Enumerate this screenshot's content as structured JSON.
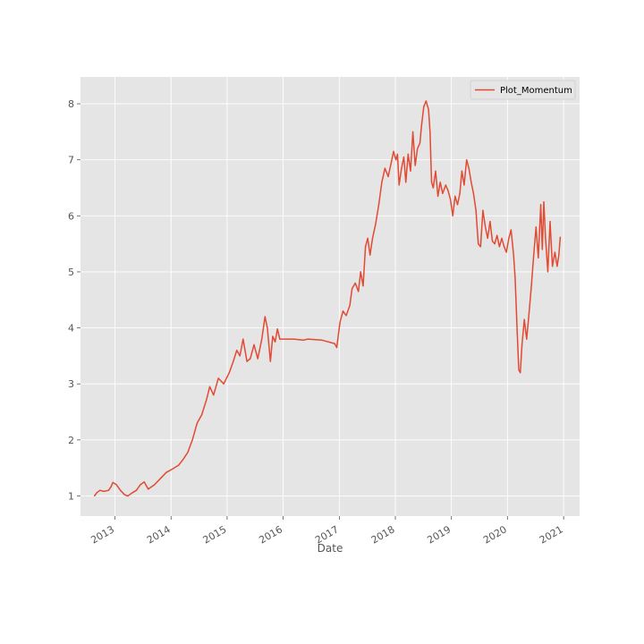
{
  "chart_data": {
    "type": "line",
    "title": "",
    "xlabel": "Date",
    "ylabel": "",
    "x_ticks": [
      "2013",
      "2014",
      "2015",
      "2016",
      "2017",
      "2018",
      "2019",
      "2020",
      "2021"
    ],
    "y_ticks": [
      1,
      2,
      3,
      4,
      5,
      6,
      7,
      8
    ],
    "xlim": [
      "2012-05-21",
      "2021-04-15"
    ],
    "ylim": [
      0.64,
      8.48
    ],
    "grid": true,
    "legend_position": "upper right",
    "series": [
      {
        "name": "Plot_Momentum",
        "color": "#E24A33",
        "points": [
          [
            "2012-08-20",
            1.0
          ],
          [
            "2012-09-05",
            1.06
          ],
          [
            "2012-09-25",
            1.1
          ],
          [
            "2012-10-20",
            1.08
          ],
          [
            "2012-11-20",
            1.1
          ],
          [
            "2012-12-05",
            1.16
          ],
          [
            "2012-12-18",
            1.24
          ],
          [
            "2013-01-10",
            1.2
          ],
          [
            "2013-02-05",
            1.1
          ],
          [
            "2013-03-05",
            1.02
          ],
          [
            "2013-03-25",
            1.0
          ],
          [
            "2013-04-20",
            1.05
          ],
          [
            "2013-05-20",
            1.1
          ],
          [
            "2013-06-15",
            1.2
          ],
          [
            "2013-07-10",
            1.25
          ],
          [
            "2013-08-05",
            1.12
          ],
          [
            "2013-09-15",
            1.2
          ],
          [
            "2013-10-20",
            1.3
          ],
          [
            "2013-12-01",
            1.42
          ],
          [
            "2014-01-10",
            1.48
          ],
          [
            "2014-02-20",
            1.55
          ],
          [
            "2014-03-20",
            1.65
          ],
          [
            "2014-04-20",
            1.78
          ],
          [
            "2014-05-20",
            2.0
          ],
          [
            "2014-06-20",
            2.3
          ],
          [
            "2014-07-20",
            2.45
          ],
          [
            "2014-08-20",
            2.72
          ],
          [
            "2014-09-10",
            2.95
          ],
          [
            "2014-10-05",
            2.8
          ],
          [
            "2014-11-05",
            3.1
          ],
          [
            "2014-12-10",
            3.0
          ],
          [
            "2015-01-15",
            3.2
          ],
          [
            "2015-02-10",
            3.4
          ],
          [
            "2015-03-05",
            3.6
          ],
          [
            "2015-03-25",
            3.5
          ],
          [
            "2015-04-15",
            3.8
          ],
          [
            "2015-05-10",
            3.4
          ],
          [
            "2015-06-01",
            3.45
          ],
          [
            "2015-06-25",
            3.7
          ],
          [
            "2015-07-20",
            3.45
          ],
          [
            "2015-08-15",
            3.8
          ],
          [
            "2015-09-05",
            4.2
          ],
          [
            "2015-09-20",
            4.0
          ],
          [
            "2015-10-10",
            3.4
          ],
          [
            "2015-10-25",
            3.85
          ],
          [
            "2015-11-10",
            3.75
          ],
          [
            "2015-11-25",
            3.98
          ],
          [
            "2015-12-10",
            3.8
          ],
          [
            "2016-03-10",
            3.8
          ],
          [
            "2016-05-10",
            3.78
          ],
          [
            "2016-06-10",
            3.8
          ],
          [
            "2016-09-10",
            3.78
          ],
          [
            "2016-12-01",
            3.72
          ],
          [
            "2016-12-15",
            3.65
          ],
          [
            "2017-01-05",
            4.1
          ],
          [
            "2017-01-25",
            4.3
          ],
          [
            "2017-02-15",
            4.22
          ],
          [
            "2017-03-10",
            4.4
          ],
          [
            "2017-03-25",
            4.7
          ],
          [
            "2017-04-15",
            4.8
          ],
          [
            "2017-05-05",
            4.65
          ],
          [
            "2017-05-20",
            5.0
          ],
          [
            "2017-06-05",
            4.75
          ],
          [
            "2017-06-20",
            5.45
          ],
          [
            "2017-07-05",
            5.6
          ],
          [
            "2017-07-20",
            5.3
          ],
          [
            "2017-08-05",
            5.6
          ],
          [
            "2017-08-25",
            5.85
          ],
          [
            "2017-09-15",
            6.2
          ],
          [
            "2017-10-05",
            6.6
          ],
          [
            "2017-10-25",
            6.85
          ],
          [
            "2017-11-15",
            6.7
          ],
          [
            "2017-12-05",
            6.95
          ],
          [
            "2017-12-20",
            7.15
          ],
          [
            "2018-01-05",
            7.0
          ],
          [
            "2018-01-15",
            7.1
          ],
          [
            "2018-01-25",
            6.55
          ],
          [
            "2018-02-10",
            6.85
          ],
          [
            "2018-02-25",
            7.05
          ],
          [
            "2018-03-10",
            6.6
          ],
          [
            "2018-03-25",
            7.1
          ],
          [
            "2018-04-10",
            6.8
          ],
          [
            "2018-04-25",
            7.5
          ],
          [
            "2018-05-10",
            6.9
          ],
          [
            "2018-05-25",
            7.2
          ],
          [
            "2018-06-10",
            7.3
          ],
          [
            "2018-06-20",
            7.6
          ],
          [
            "2018-07-05",
            7.95
          ],
          [
            "2018-07-20",
            8.05
          ],
          [
            "2018-08-05",
            7.9
          ],
          [
            "2018-08-15",
            7.5
          ],
          [
            "2018-08-25",
            6.6
          ],
          [
            "2018-09-05",
            6.5
          ],
          [
            "2018-09-20",
            6.8
          ],
          [
            "2018-10-05",
            6.35
          ],
          [
            "2018-10-20",
            6.6
          ],
          [
            "2018-11-05",
            6.4
          ],
          [
            "2018-11-25",
            6.55
          ],
          [
            "2018-12-10",
            6.45
          ],
          [
            "2018-12-25",
            6.3
          ],
          [
            "2019-01-10",
            6.0
          ],
          [
            "2019-01-25",
            6.35
          ],
          [
            "2019-02-10",
            6.2
          ],
          [
            "2019-02-25",
            6.4
          ],
          [
            "2019-03-10",
            6.8
          ],
          [
            "2019-03-25",
            6.55
          ],
          [
            "2019-04-10",
            7.0
          ],
          [
            "2019-04-25",
            6.85
          ],
          [
            "2019-05-10",
            6.6
          ],
          [
            "2019-05-25",
            6.4
          ],
          [
            "2019-06-10",
            6.1
          ],
          [
            "2019-06-25",
            5.5
          ],
          [
            "2019-07-10",
            5.45
          ],
          [
            "2019-07-25",
            6.1
          ],
          [
            "2019-08-10",
            5.8
          ],
          [
            "2019-08-25",
            5.6
          ],
          [
            "2019-09-10",
            5.9
          ],
          [
            "2019-09-25",
            5.55
          ],
          [
            "2019-10-10",
            5.5
          ],
          [
            "2019-10-25",
            5.65
          ],
          [
            "2019-11-10",
            5.45
          ],
          [
            "2019-11-25",
            5.6
          ],
          [
            "2019-12-10",
            5.45
          ],
          [
            "2019-12-25",
            5.35
          ],
          [
            "2020-01-10",
            5.6
          ],
          [
            "2020-01-25",
            5.75
          ],
          [
            "2020-02-10",
            5.3
          ],
          [
            "2020-02-20",
            4.9
          ],
          [
            "2020-03-05",
            3.9
          ],
          [
            "2020-03-15",
            3.25
          ],
          [
            "2020-03-25",
            3.2
          ],
          [
            "2020-04-05",
            3.7
          ],
          [
            "2020-04-20",
            4.15
          ],
          [
            "2020-05-05",
            3.8
          ],
          [
            "2020-05-20",
            4.25
          ],
          [
            "2020-06-05",
            4.75
          ],
          [
            "2020-06-20",
            5.3
          ],
          [
            "2020-07-05",
            5.8
          ],
          [
            "2020-07-20",
            5.25
          ],
          [
            "2020-08-05",
            6.2
          ],
          [
            "2020-08-15",
            5.4
          ],
          [
            "2020-08-25",
            6.25
          ],
          [
            "2020-09-05",
            5.6
          ],
          [
            "2020-09-20",
            5.0
          ],
          [
            "2020-10-05",
            5.9
          ],
          [
            "2020-10-20",
            5.1
          ],
          [
            "2020-11-05",
            5.35
          ],
          [
            "2020-11-20",
            5.1
          ],
          [
            "2020-12-01",
            5.3
          ],
          [
            "2020-12-10",
            5.62
          ]
        ]
      }
    ]
  }
}
